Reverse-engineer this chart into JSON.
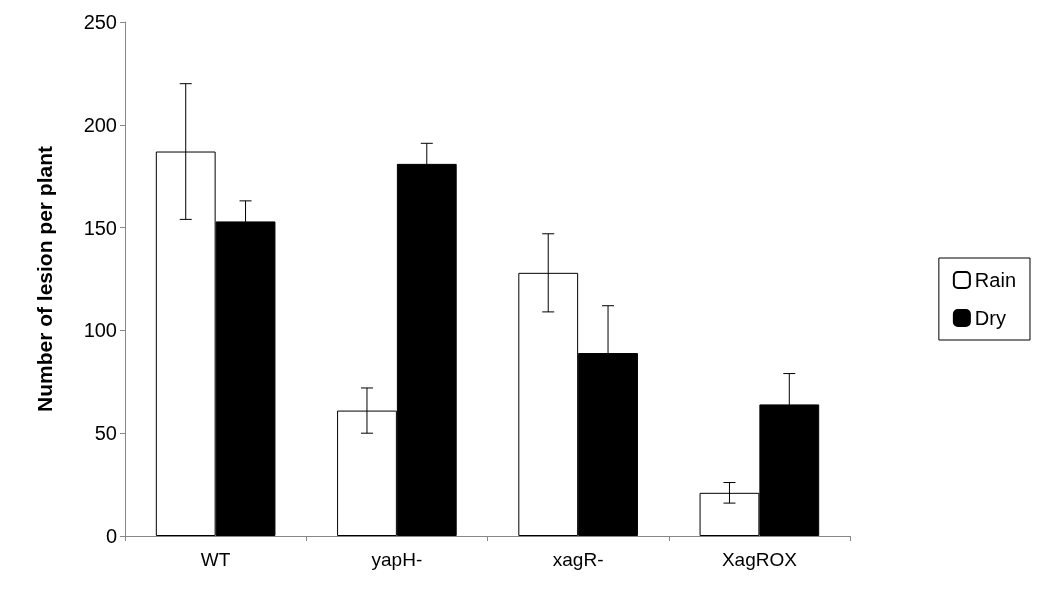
{
  "chart_data": {
    "type": "bar",
    "ylabel": "Number of lesion per plant",
    "categories": [
      "WT",
      "yapH-",
      "xagR-",
      "XagROX"
    ],
    "series": [
      {
        "name": "Rain",
        "color": "#ffffff",
        "values": [
          187,
          61,
          128,
          21
        ],
        "errors": [
          33,
          11,
          19,
          5
        ]
      },
      {
        "name": "Dry",
        "color": "#000000",
        "values": [
          153,
          181,
          89,
          64
        ],
        "errors": [
          10,
          10,
          23,
          15
        ]
      }
    ],
    "ylim": [
      0,
      250
    ],
    "yticks": [
      0,
      50,
      100,
      150,
      200,
      250
    ],
    "grid": false,
    "legend": "right"
  }
}
